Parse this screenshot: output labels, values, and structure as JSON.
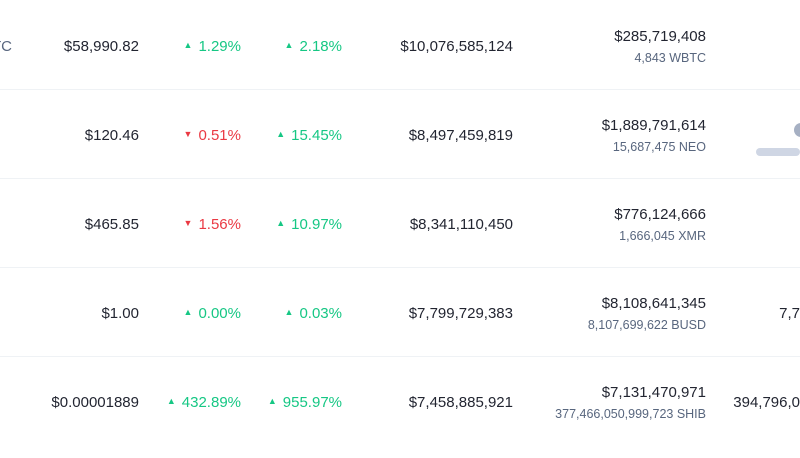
{
  "rows": [
    {
      "symbol_partial": "TC",
      "price": "$58,990.82",
      "change_24h": "1.29%",
      "change_24h_dir": "up",
      "change_7d": "2.18%",
      "change_7d_dir": "up",
      "market_cap": "$10,076,585,124",
      "volume_usd": "$285,719,408",
      "volume_coin": "4,843 WBTC",
      "supply_partial": ""
    },
    {
      "symbol_partial": "",
      "price": "$120.46",
      "change_24h": "0.51%",
      "change_24h_dir": "down",
      "change_7d": "15.45%",
      "change_7d_dir": "up",
      "market_cap": "$8,497,459,819",
      "volume_usd": "$1,889,791,614",
      "volume_coin": "15,687,475 NEO",
      "supply_partial": ""
    },
    {
      "symbol_partial": "",
      "price": "$465.85",
      "change_24h": "1.56%",
      "change_24h_dir": "down",
      "change_7d": "10.97%",
      "change_7d_dir": "up",
      "market_cap": "$8,341,110,450",
      "volume_usd": "$776,124,666",
      "volume_coin": "1,666,045 XMR",
      "supply_partial": ""
    },
    {
      "symbol_partial": "",
      "price": "$1.00",
      "change_24h": "0.00%",
      "change_24h_dir": "up",
      "change_7d": "0.03%",
      "change_7d_dir": "up",
      "market_cap": "$7,799,729,383",
      "volume_usd": "$8,108,641,345",
      "volume_coin": "8,107,699,622 BUSD",
      "supply_partial": "7,7"
    },
    {
      "symbol_partial": "",
      "price": "$0.00001889",
      "change_24h": "432.89%",
      "change_24h_dir": "up",
      "change_7d": "955.97%",
      "change_7d_dir": "up",
      "market_cap": "$7,458,885,921",
      "volume_usd": "$7,131,470,971",
      "volume_coin": "377,466,050,999,723 SHIB",
      "supply_partial": "394,796,0"
    }
  ],
  "icons": {
    "up": "caret-up-icon",
    "down": "caret-down-icon"
  },
  "colors": {
    "up": "#16c784",
    "down": "#ea3943",
    "text": "#222531",
    "muted": "#58667e"
  }
}
